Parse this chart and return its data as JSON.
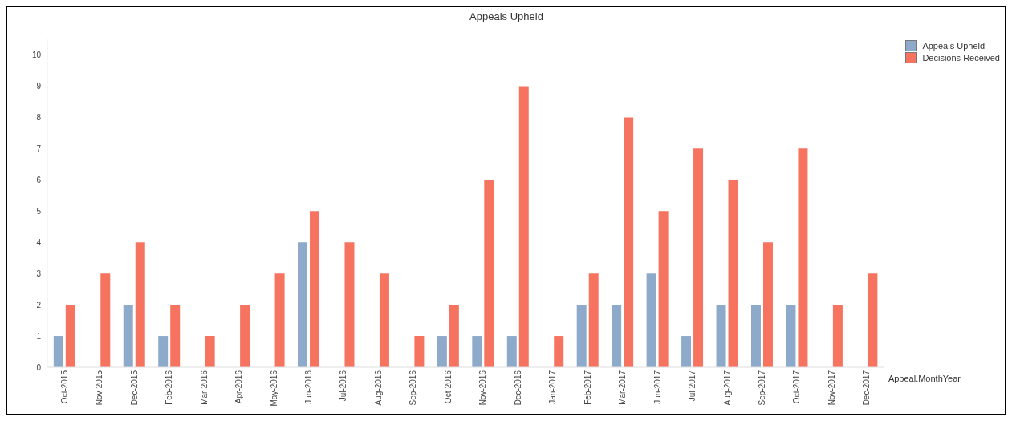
{
  "chart_data": {
    "type": "bar",
    "title": "Appeals Upheld",
    "xlabel": "Appeal.MonthYear",
    "categories": [
      "Oct-2015",
      "Nov-2015",
      "Dec-2015",
      "Feb-2016",
      "Mar-2016",
      "Apr-2016",
      "May-2016",
      "Jun-2016",
      "Jul-2016",
      "Aug-2016",
      "Sep-2016",
      "Oct-2016",
      "Nov-2016",
      "Dec-2016",
      "Jan-2017",
      "Feb-2017",
      "Mar-2017",
      "Jun-2017",
      "Jul-2017",
      "Aug-2017",
      "Sep-2017",
      "Oct-2017",
      "Nov-2017",
      "Dec-2017"
    ],
    "series": [
      {
        "name": "Appeals Upheld",
        "color": "#8eaacb",
        "values": [
          1,
          null,
          2,
          1,
          null,
          null,
          null,
          4,
          null,
          null,
          null,
          1,
          1,
          1,
          null,
          2,
          2,
          3,
          1,
          2,
          2,
          2,
          null,
          null
        ]
      },
      {
        "name": "Decisions Received",
        "color": "#f6735f",
        "values": [
          2,
          3,
          4,
          2,
          1,
          2,
          3,
          5,
          4,
          3,
          1,
          2,
          6,
          9,
          1,
          3,
          8,
          5,
          7,
          6,
          4,
          7,
          2,
          3
        ]
      }
    ],
    "ylim": [
      0,
      10.5
    ],
    "yticks": [
      0,
      1,
      2,
      3,
      4,
      5,
      6,
      7,
      8,
      9,
      10
    ],
    "grid": false,
    "legend": "top right"
  }
}
